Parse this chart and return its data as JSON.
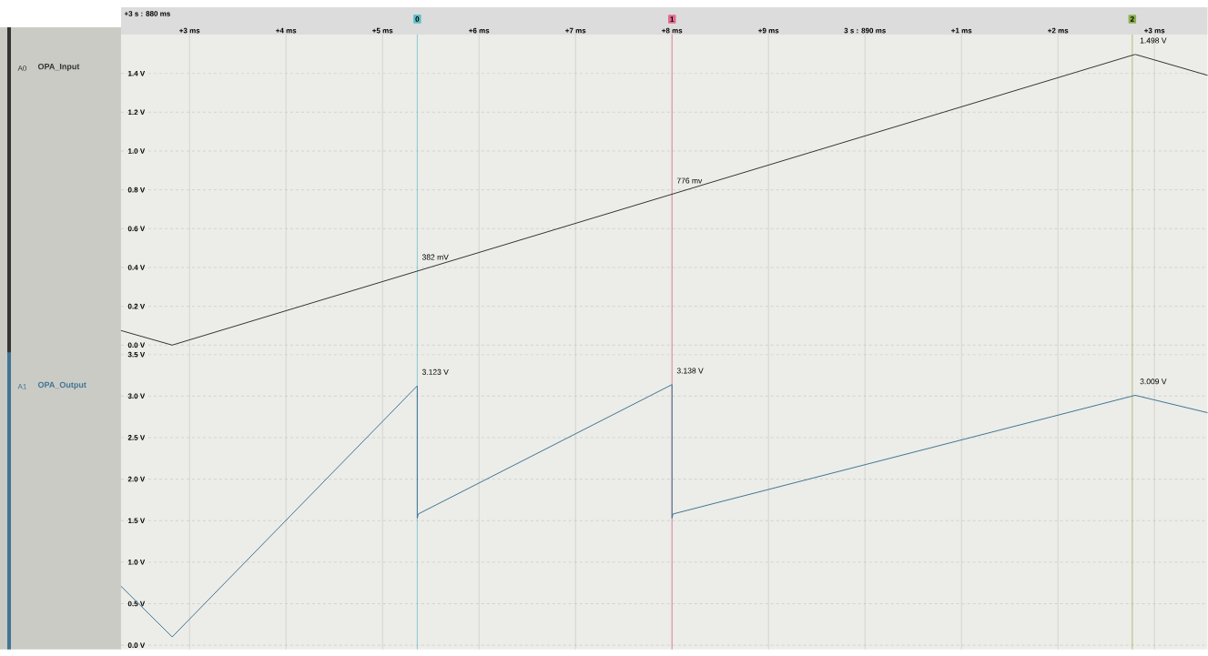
{
  "chart_data": [
    {
      "type": "line",
      "xlim": [
        2.29,
        13.55
      ],
      "ylim": [
        -0.04,
        1.6
      ],
      "xticks": [
        {
          "value": 3,
          "label": "+3 ms"
        },
        {
          "value": 4,
          "label": "+4 ms"
        },
        {
          "value": 5,
          "label": "+5 ms"
        },
        {
          "value": 6,
          "label": "+6 ms"
        },
        {
          "value": 7,
          "label": "+7 ms"
        },
        {
          "value": 8,
          "label": "+8 ms"
        },
        {
          "value": 9,
          "label": "+9 ms"
        }
      ],
      "x2lim": [
        -7.71,
        3.55
      ],
      "x2ticks": [
        {
          "value": 0,
          "label": "3 s : 890 ms"
        },
        {
          "value": 1,
          "label": "+1 ms"
        },
        {
          "value": 2,
          "label": "+2 ms"
        },
        {
          "value": 3,
          "label": "+3 ms"
        }
      ],
      "yticks": [
        {
          "value": 0,
          "label": "0.0 V"
        },
        {
          "value": 0.2,
          "label": "0.2 V"
        },
        {
          "value": 0.4,
          "label": "0.4 V"
        },
        {
          "value": 0.6,
          "label": "0.6 V"
        },
        {
          "value": 0.8,
          "label": "0.8 V"
        },
        {
          "value": 1.0,
          "label": "1.0 V"
        },
        {
          "value": 1.2,
          "label": "1.2 V"
        },
        {
          "value": 1.4,
          "label": "1.4 V"
        }
      ],
      "grid": true,
      "series": [
        {
          "name": "OPA_Input",
          "color": "#333333",
          "x": [
            2.29,
            2.82,
            12.8,
            13.55
          ],
          "values": [
            0.075,
            0.0,
            1.498,
            1.39
          ]
        }
      ],
      "ref_lines": [
        {
          "axis": "x",
          "value": 5.36,
          "color": "#5bbfc8"
        },
        {
          "axis": "x",
          "value": 8.0,
          "color": "#e26a8d"
        },
        {
          "axis": "x",
          "value": 12.77,
          "color": "#8db04f"
        }
      ],
      "annotations": [
        "+3 s : 880 ms",
        "A0",
        {
          "text": "0",
          "x": 5.36,
          "y": 1.6
        },
        {
          "text": "1",
          "x": 8.0,
          "y": 1.6
        },
        {
          "text": "2",
          "x": 12.77,
          "y": 1.6
        },
        {
          "text": "382 mV",
          "x": 5.36,
          "y": 0.382
        },
        {
          "text": "776 mv",
          "x": 8.0,
          "y": 0.776
        },
        {
          "text": "1.498 V",
          "x": 12.8,
          "y": 1.498
        }
      ]
    },
    {
      "type": "line",
      "xlim": [
        2.29,
        13.55
      ],
      "ylim": [
        -0.05,
        3.52
      ],
      "tick_labels": "y",
      "yticks": [
        {
          "value": 0,
          "label": "0.0 V"
        },
        {
          "value": 0.5,
          "label": "0.5 V"
        },
        {
          "value": 1.0,
          "label": "1.0 V"
        },
        {
          "value": 1.5,
          "label": "1.5 V"
        },
        {
          "value": 2.0,
          "label": "2.0 V"
        },
        {
          "value": 2.5,
          "label": "2.5 V"
        },
        {
          "value": 3.0,
          "label": "3.0 V"
        },
        {
          "value": 3.5,
          "label": "3.5 V"
        }
      ],
      "grid": true,
      "series": [
        {
          "name": "OPA_Output",
          "color": "#3f7594",
          "x": [
            2.29,
            2.82,
            5.36,
            5.36,
            5.37,
            8.0,
            8.0,
            8.01,
            12.8,
            13.55
          ],
          "values": [
            0.71,
            0.1,
            3.123,
            1.53,
            1.58,
            3.138,
            1.53,
            1.58,
            3.009,
            2.8
          ]
        }
      ],
      "ref_lines": [
        {
          "axis": "x",
          "value": 5.36,
          "color": "#5bbfc8"
        },
        {
          "axis": "x",
          "value": 8.0,
          "color": "#e26a8d"
        },
        {
          "axis": "x",
          "value": 12.77,
          "color": "#8db04f"
        }
      ],
      "annotations": [
        "A1",
        {
          "text": "3.123 V",
          "x": 5.36,
          "y": 3.123
        },
        {
          "text": "3.138 V",
          "x": 8.0,
          "y": 3.138
        },
        {
          "text": "3.009 V",
          "x": 12.8,
          "y": 3.009
        }
      ]
    }
  ]
}
